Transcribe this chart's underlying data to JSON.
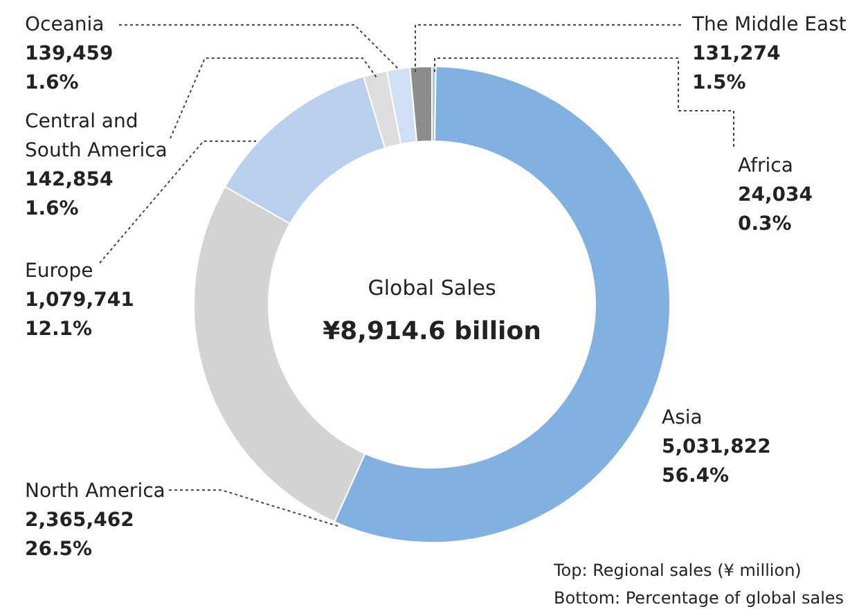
{
  "chart_data": {
    "type": "donut",
    "categories": [
      "Africa",
      "Asia",
      "North America",
      "Europe",
      "Central and South America",
      "Oceania",
      "The Middle East"
    ],
    "values": [
      24034,
      5031822,
      2365462,
      1079741,
      142854,
      139459,
      131274
    ],
    "colors": [
      "#a9c6ea",
      "#80b1e0",
      "#d3d3d3",
      "#b9cfee",
      "#dddddd",
      "#cfe0f5",
      "#8c8c8c"
    ],
    "value_labels": [
      "24,034\n0.3%",
      "5,031,822\n56.4%",
      "2,365,462\n26.5%",
      "1,079,741\n12.1%",
      "142,854\n1.6%",
      "139,459\n1.6%",
      "131,274\n1.5%"
    ],
    "annotations": [
      "Global Sales",
      "¥8,914.6 billion",
      "Top: Regional sales (¥ million)",
      "Bottom: Percentage of global sales"
    ]
  }
}
